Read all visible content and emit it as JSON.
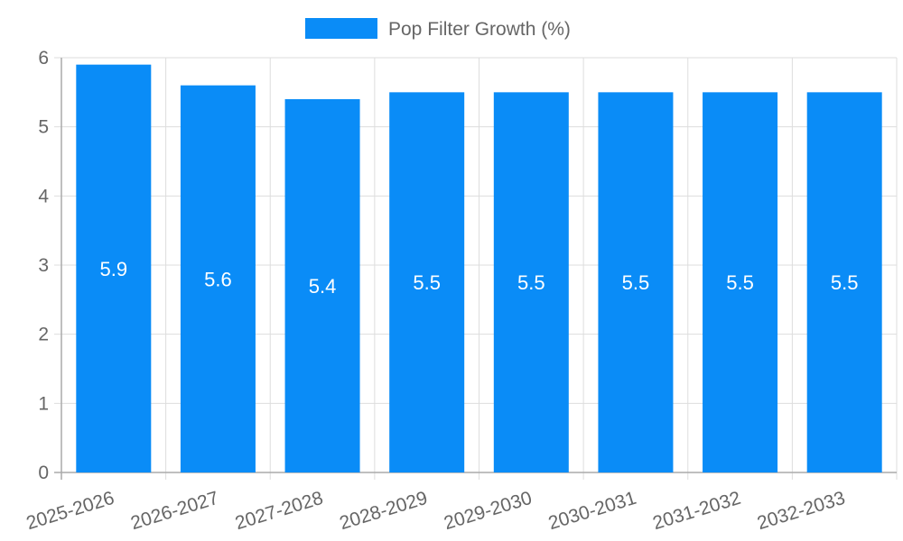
{
  "chart_data": {
    "type": "bar",
    "categories": [
      "2025-2026",
      "2026-2027",
      "2027-2028",
      "2028-2029",
      "2029-2030",
      "2030-2031",
      "2031-2032",
      "2032-2033"
    ],
    "series": [
      {
        "name": "Pop Filter Growth (%)",
        "values": [
          5.9,
          5.6,
          5.4,
          5.5,
          5.5,
          5.5,
          5.5,
          5.5
        ],
        "color": "#0a8cf7"
      }
    ],
    "ylim": [
      0,
      6
    ],
    "yticks": [
      0,
      1,
      2,
      3,
      4,
      5,
      6
    ],
    "grid": true,
    "legend_position": "top-center",
    "data_labels": true
  }
}
